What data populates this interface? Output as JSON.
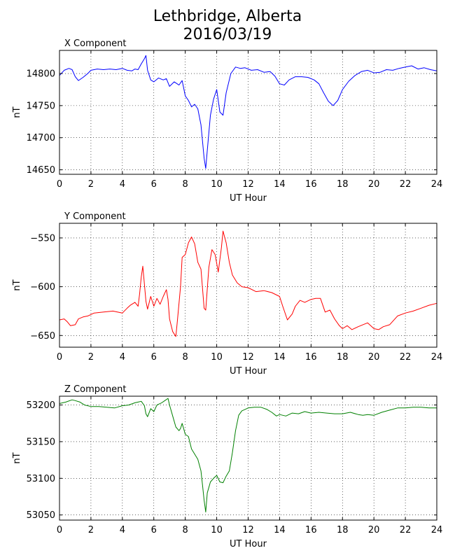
{
  "title_line1": "Lethbridge, Alberta",
  "title_line2": "2016/03/19",
  "chart_data": [
    {
      "type": "line",
      "title": "X Component",
      "xlabel": "UT Hour",
      "ylabel": "nT",
      "xlim": [
        0,
        24
      ],
      "ylim": [
        14643,
        14836
      ],
      "xticks": [
        0,
        2,
        4,
        6,
        8,
        10,
        12,
        14,
        16,
        18,
        20,
        22,
        24
      ],
      "yticks": [
        14650,
        14700,
        14750,
        14800
      ],
      "grid": true,
      "color": "#0000ff",
      "series": [
        {
          "x": [
            0,
            0.3,
            0.6,
            0.8,
            1.0,
            1.2,
            1.5,
            1.8,
            2.0,
            2.4,
            2.8,
            3.2,
            3.6,
            4.0,
            4.3,
            4.6,
            4.8,
            5.0,
            5.2,
            5.4,
            5.5,
            5.6,
            5.8,
            6.0,
            6.3,
            6.6,
            6.8,
            7.0,
            7.3,
            7.6,
            7.8,
            8.0,
            8.2,
            8.4,
            8.6,
            8.8,
            9.0,
            9.2,
            9.3,
            9.4,
            9.6,
            9.8,
            10.0,
            10.2,
            10.4,
            10.6,
            10.9,
            11.2,
            11.5,
            11.8,
            12.2,
            12.6,
            13.0,
            13.4,
            13.7,
            14.0,
            14.3,
            14.6,
            15.0,
            15.4,
            15.8,
            16.2,
            16.5,
            16.8,
            17.1,
            17.4,
            17.7,
            18.0,
            18.4,
            18.8,
            19.2,
            19.6,
            20.0,
            20.4,
            20.8,
            21.2,
            21.6,
            22.0,
            22.4,
            22.8,
            23.2,
            23.6,
            24.0
          ],
          "y": [
            14797,
            14805,
            14808,
            14806,
            14795,
            14789,
            14794,
            14800,
            14805,
            14807,
            14806,
            14807,
            14806,
            14808,
            14805,
            14804,
            14807,
            14806,
            14815,
            14823,
            14828,
            14805,
            14790,
            14787,
            14793,
            14790,
            14792,
            14780,
            14787,
            14782,
            14789,
            14765,
            14758,
            14748,
            14752,
            14745,
            14720,
            14668,
            14652,
            14680,
            14735,
            14760,
            14775,
            14740,
            14735,
            14770,
            14800,
            14810,
            14808,
            14809,
            14805,
            14806,
            14802,
            14803,
            14796,
            14784,
            14782,
            14790,
            14795,
            14795,
            14794,
            14790,
            14784,
            14770,
            14757,
            14750,
            14758,
            14775,
            14788,
            14797,
            14803,
            14805,
            14801,
            14802,
            14806,
            14805,
            14808,
            14810,
            14812,
            14807,
            14809,
            14806,
            14804
          ]
        }
      ]
    },
    {
      "type": "line",
      "title": "Y Component",
      "xlabel": "UT Hour",
      "ylabel": "nT",
      "xlim": [
        0,
        24
      ],
      "ylim": [
        -662,
        -535
      ],
      "xticks": [
        0,
        2,
        4,
        6,
        8,
        10,
        12,
        14,
        16,
        18,
        20,
        22,
        24
      ],
      "yticks": [
        -650,
        -600,
        -550
      ],
      "grid": true,
      "color": "#ff0000",
      "series": [
        {
          "x": [
            0,
            0.3,
            0.5,
            0.7,
            1.0,
            1.2,
            1.5,
            1.8,
            2.2,
            2.8,
            3.4,
            4.0,
            4.3,
            4.5,
            4.8,
            5.0,
            5.1,
            5.2,
            5.3,
            5.5,
            5.6,
            5.8,
            6.0,
            6.2,
            6.4,
            6.6,
            6.8,
            6.9,
            7.0,
            7.2,
            7.4,
            7.5,
            7.7,
            7.8,
            8.0,
            8.2,
            8.4,
            8.6,
            8.8,
            9.0,
            9.2,
            9.3,
            9.5,
            9.7,
            9.9,
            10.1,
            10.3,
            10.4,
            10.6,
            10.8,
            11.0,
            11.3,
            11.6,
            12.0,
            12.5,
            13.0,
            13.5,
            14.0,
            14.2,
            14.5,
            14.8,
            15.0,
            15.3,
            15.6,
            16.0,
            16.3,
            16.6,
            16.9,
            17.2,
            17.5,
            17.8,
            18.0,
            18.3,
            18.6,
            19.0,
            19.3,
            19.6,
            20.0,
            20.3,
            20.6,
            21.0,
            21.5,
            22.0,
            22.5,
            23.0,
            23.5,
            24.0
          ],
          "y": [
            -634,
            -633,
            -636,
            -640,
            -639,
            -633,
            -631,
            -630,
            -627,
            -626,
            -625,
            -627,
            -622,
            -619,
            -616,
            -620,
            -607,
            -590,
            -579,
            -615,
            -623,
            -610,
            -620,
            -612,
            -618,
            -610,
            -603,
            -613,
            -633,
            -646,
            -651,
            -635,
            -600,
            -570,
            -567,
            -555,
            -549,
            -556,
            -575,
            -582,
            -622,
            -624,
            -580,
            -562,
            -567,
            -585,
            -560,
            -543,
            -555,
            -575,
            -588,
            -596,
            -600,
            -601,
            -605,
            -604,
            -606,
            -610,
            -620,
            -634,
            -628,
            -620,
            -614,
            -616,
            -613,
            -612,
            -612,
            -626,
            -624,
            -633,
            -640,
            -643,
            -640,
            -644,
            -641,
            -639,
            -637,
            -643,
            -644,
            -641,
            -639,
            -630,
            -627,
            -625,
            -622,
            -619,
            -617
          ]
        }
      ]
    },
    {
      "type": "line",
      "title": "Z Component",
      "xlabel": "UT Hour",
      "ylabel": "nT",
      "xlim": [
        0,
        24
      ],
      "ylim": [
        53043,
        53212
      ],
      "xticks": [
        0,
        2,
        4,
        6,
        8,
        10,
        12,
        14,
        16,
        18,
        20,
        22,
        24
      ],
      "yticks": [
        53050,
        53100,
        53150,
        53200
      ],
      "grid": true,
      "color": "#008000",
      "series": [
        {
          "x": [
            0,
            0.4,
            0.8,
            1.0,
            1.3,
            1.6,
            2.0,
            2.5,
            3.0,
            3.5,
            4.0,
            4.4,
            4.8,
            5.0,
            5.2,
            5.4,
            5.5,
            5.6,
            5.8,
            6.0,
            6.2,
            6.5,
            6.7,
            6.9,
            7.0,
            7.2,
            7.4,
            7.6,
            7.7,
            7.8,
            8.0,
            8.2,
            8.4,
            8.6,
            8.8,
            9.0,
            9.1,
            9.2,
            9.3,
            9.4,
            9.6,
            9.8,
            10.0,
            10.2,
            10.4,
            10.6,
            10.8,
            11.0,
            11.2,
            11.4,
            11.6,
            11.8,
            12.0,
            12.4,
            12.8,
            13.2,
            13.5,
            13.8,
            14.0,
            14.4,
            14.8,
            15.2,
            15.6,
            16.0,
            16.5,
            17.0,
            17.5,
            18.0,
            18.5,
            19.0,
            19.3,
            19.6,
            20.0,
            20.5,
            21.0,
            21.5,
            22.0,
            22.5,
            23.0,
            23.5,
            24.0
          ],
          "y": [
            53202,
            53204,
            53207,
            53206,
            53204,
            53200,
            53198,
            53198,
            53197,
            53196,
            53199,
            53200,
            53203,
            53204,
            53205,
            53199,
            53188,
            53184,
            53195,
            53191,
            53200,
            53203,
            53206,
            53209,
            53200,
            53185,
            53170,
            53165,
            53168,
            53175,
            53160,
            53157,
            53140,
            53133,
            53126,
            53110,
            53090,
            53070,
            53054,
            53080,
            53095,
            53100,
            53104,
            53095,
            53094,
            53103,
            53110,
            53135,
            53165,
            53186,
            53192,
            53194,
            53196,
            53197,
            53197,
            53194,
            53190,
            53185,
            53187,
            53185,
            53189,
            53188,
            53191,
            53189,
            53190,
            53189,
            53188,
            53188,
            53190,
            53187,
            53186,
            53187,
            53186,
            53190,
            53193,
            53196,
            53196,
            53197,
            53197,
            53196,
            53196
          ]
        }
      ]
    }
  ]
}
